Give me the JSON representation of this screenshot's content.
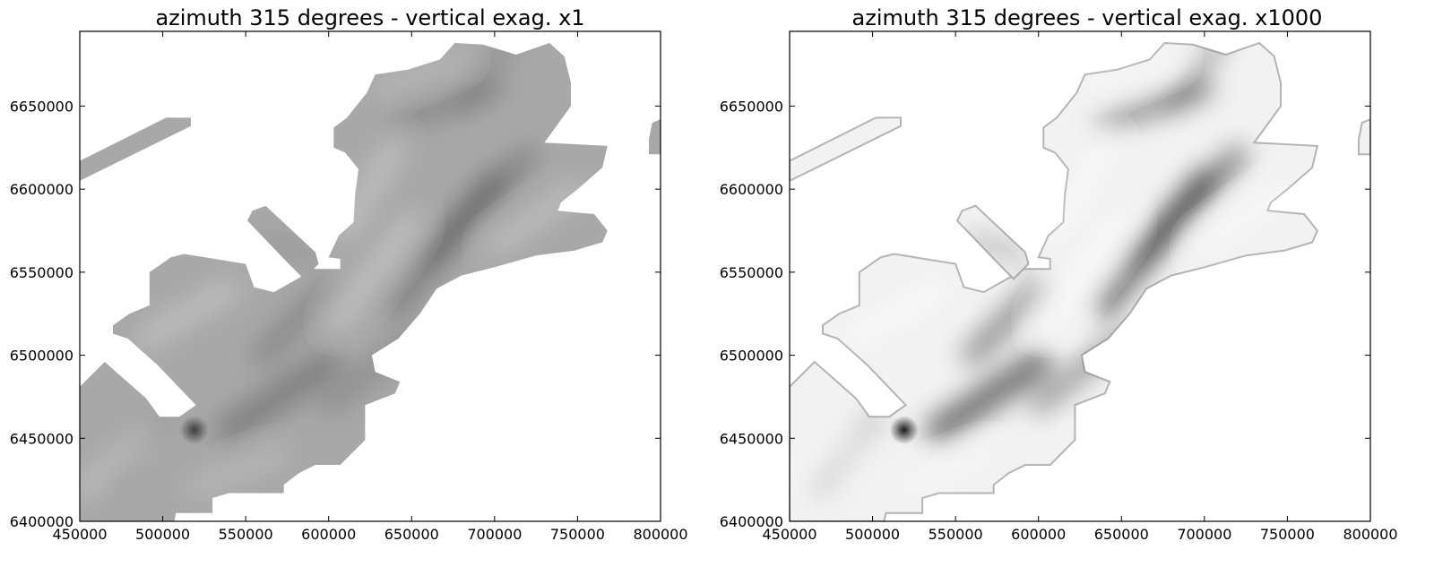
{
  "chart_data": [
    {
      "type": "heatmap",
      "title": "azimuth 315 degrees - vertical exag. x1",
      "xlabel": "",
      "ylabel": "",
      "xlim": [
        450000,
        800000
      ],
      "ylim": [
        6400000,
        6695000
      ],
      "xticks": [
        450000,
        500000,
        550000,
        600000,
        650000,
        700000,
        750000,
        800000
      ],
      "yticks": [
        6400000,
        6450000,
        6500000,
        6550000,
        6600000,
        6650000
      ],
      "xtick_labels": [
        "450000",
        "500000",
        "550000",
        "600000",
        "650000",
        "700000",
        "750000",
        "800000"
      ],
      "ytick_labels": [
        "6400000",
        "6450000",
        "6500000",
        "6550000",
        "6600000",
        "6650000"
      ],
      "grid": false,
      "colormap": "gray",
      "background_color": "#ffffff",
      "regions": {
        "main_coast": [
          [
            450000,
            6400000
          ],
          [
            507000,
            6400000
          ],
          [
            508000,
            6405000
          ],
          [
            530000,
            6405000
          ],
          [
            530000,
            6414000
          ],
          [
            540000,
            6417000
          ],
          [
            573000,
            6417000
          ],
          [
            573000,
            6422000
          ],
          [
            582000,
            6429000
          ],
          [
            592000,
            6434000
          ],
          [
            607000,
            6434000
          ],
          [
            622000,
            6449000
          ],
          [
            622000,
            6470000
          ],
          [
            640000,
            6477000
          ],
          [
            643000,
            6484000
          ],
          [
            628000,
            6490000
          ],
          [
            626000,
            6500000
          ],
          [
            642000,
            6510000
          ],
          [
            655000,
            6525000
          ],
          [
            665000,
            6540000
          ],
          [
            680000,
            6548000
          ],
          [
            700000,
            6553000
          ],
          [
            725000,
            6560000
          ],
          [
            748000,
            6563000
          ],
          [
            765000,
            6568000
          ],
          [
            768000,
            6575000
          ],
          [
            760000,
            6585000
          ],
          [
            738000,
            6587000
          ],
          [
            740000,
            6592000
          ],
          [
            750000,
            6600000
          ],
          [
            765000,
            6613000
          ],
          [
            768000,
            6626000
          ],
          [
            730000,
            6628000
          ],
          [
            746000,
            6650000
          ],
          [
            746000,
            6664000
          ],
          [
            742000,
            6680000
          ],
          [
            733000,
            6688000
          ],
          [
            713000,
            6681000
          ],
          [
            693000,
            6687000
          ],
          [
            676000,
            6688000
          ],
          [
            667000,
            6678000
          ],
          [
            648000,
            6672000
          ],
          [
            628000,
            6669000
          ],
          [
            623000,
            6658000
          ],
          [
            611000,
            6643000
          ],
          [
            603000,
            6637000
          ],
          [
            603000,
            6625000
          ],
          [
            610000,
            6622000
          ],
          [
            618000,
            6612000
          ],
          [
            616000,
            6597000
          ],
          [
            615000,
            6580000
          ],
          [
            606000,
            6572000
          ],
          [
            600000,
            6559000
          ],
          [
            607000,
            6558000
          ],
          [
            607000,
            6552000
          ],
          [
            587000,
            6552000
          ],
          [
            583000,
            6547000
          ],
          [
            567000,
            6538000
          ],
          [
            555000,
            6541000
          ],
          [
            550000,
            6555000
          ],
          [
            513000,
            6561000
          ],
          [
            505000,
            6559000
          ],
          [
            492000,
            6550000
          ],
          [
            492000,
            6530000
          ],
          [
            480000,
            6525000
          ],
          [
            470000,
            6518000
          ],
          [
            470000,
            6513000
          ],
          [
            479000,
            6510000
          ],
          [
            497000,
            6494000
          ],
          [
            520000,
            6470000
          ],
          [
            510000,
            6463000
          ],
          [
            498000,
            6463000
          ],
          [
            490000,
            6474000
          ],
          [
            465000,
            6496000
          ],
          [
            450000,
            6481000
          ]
        ],
        "west_strip": [
          [
            450000,
            6605000
          ],
          [
            517000,
            6638000
          ],
          [
            517000,
            6643000
          ],
          [
            502000,
            6643000
          ],
          [
            450000,
            6617000
          ]
        ],
        "middle_strip": [
          [
            554000,
            6587000
          ],
          [
            562000,
            6590000
          ],
          [
            592000,
            6562000
          ],
          [
            594000,
            6555000
          ],
          [
            585000,
            6546000
          ],
          [
            575000,
            6556000
          ],
          [
            551000,
            6581000
          ]
        ],
        "east_edge": [
          [
            793000,
            6621000
          ],
          [
            800000,
            6621000
          ],
          [
            800000,
            6642000
          ],
          [
            795000,
            6640000
          ],
          [
            793000,
            6630000
          ]
        ]
      },
      "relief": {
        "x1": {
          "land_shade": "#a8a8a8",
          "dark": "#000000",
          "light": "#ffffff",
          "dark_opacity": 0.7,
          "light_opacity": 0.65,
          "shadow_opacity": 0.45,
          "sun_opacity": 0.5
        },
        "x1000": {
          "land_shade": "#f2f2f2",
          "dark": "#000000",
          "light": "#ffffff",
          "dark_opacity": 1.0,
          "light_opacity": 1.0,
          "shadow_opacity": 1.0,
          "sun_opacity": 1.0
        }
      }
    },
    {
      "type": "heatmap",
      "title": "azimuth 315 degrees - vertical exag. x1000",
      "xlabel": "",
      "ylabel": "",
      "xlim": [
        450000,
        800000
      ],
      "ylim": [
        6400000,
        6695000
      ],
      "xticks": [
        450000,
        500000,
        550000,
        600000,
        650000,
        700000,
        750000,
        800000
      ],
      "yticks": [
        6400000,
        6450000,
        6500000,
        6550000,
        6600000,
        6650000
      ],
      "xtick_labels": [
        "450000",
        "500000",
        "550000",
        "600000",
        "650000",
        "700000",
        "750000",
        "800000"
      ],
      "ytick_labels": [
        "6400000",
        "6450000",
        "6500000",
        "6550000",
        "6600000",
        "6650000"
      ],
      "grid": false,
      "colormap": "gray",
      "background_color": "#ffffff"
    }
  ]
}
